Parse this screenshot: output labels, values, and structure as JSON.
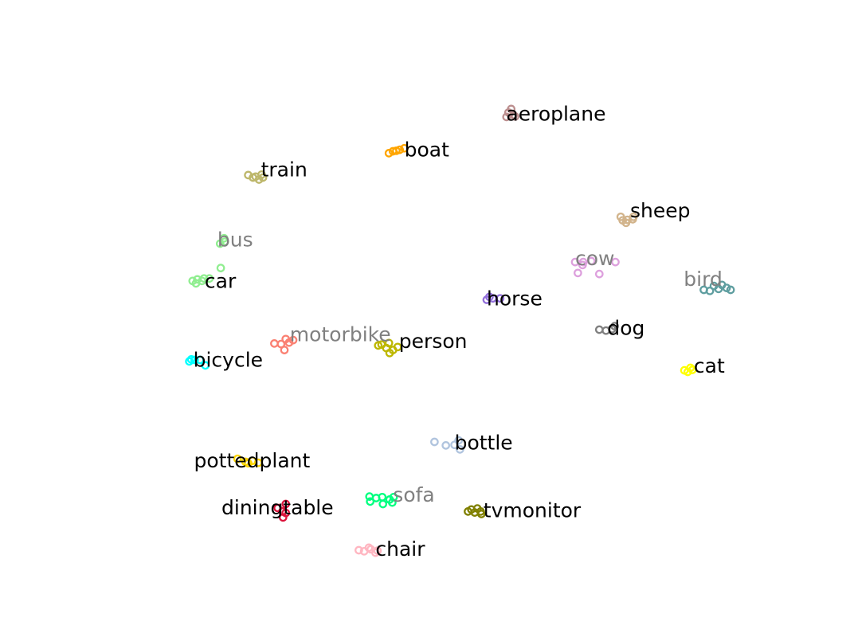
{
  "chart_data": {
    "type": "scatter",
    "title": "",
    "xlabel": "",
    "ylabel": "",
    "axes_visible": false,
    "grid": false,
    "legend": "none",
    "xlim": [
      0,
      100
    ],
    "ylim": [
      0,
      100
    ],
    "series": [
      {
        "name": "aeroplane",
        "color": "#bc8f8f",
        "label_color": "#000000",
        "points": [
          [
            59.85,
            90.5
          ],
          [
            60.6,
            90.0
          ],
          [
            60.25,
            91.2
          ],
          [
            60.85,
            89.7
          ],
          [
            59.55,
            89.6
          ]
        ],
        "label_at": [
          59.5,
          90.0
        ]
      },
      {
        "name": "boat",
        "color": "#ffa500",
        "label_color": "#000000",
        "points": [
          [
            42.0,
            82.3
          ],
          [
            43.1,
            82.8
          ],
          [
            44.3,
            83.3
          ],
          [
            42.6,
            82.7
          ],
          [
            43.6,
            83.0
          ]
        ],
        "label_at": [
          44.3,
          82.8
        ]
      },
      {
        "name": "train",
        "color": "#bdb76b",
        "label_color": "#000000",
        "points": [
          [
            21.0,
            77.9
          ],
          [
            22.1,
            77.6
          ],
          [
            23.2,
            77.4
          ],
          [
            22.6,
            77.0
          ],
          [
            21.7,
            77.4
          ],
          [
            23.0,
            78.0
          ]
        ],
        "label_at": [
          22.9,
          78.8
        ]
      },
      {
        "name": "sheep",
        "color": "#d2b48c",
        "label_color": "#000000",
        "points": [
          [
            76.6,
            69.5
          ],
          [
            77.6,
            68.9
          ],
          [
            78.4,
            69.0
          ],
          [
            76.9,
            68.8
          ],
          [
            77.4,
            68.3
          ],
          [
            78.5,
            69.5
          ]
        ],
        "label_at": [
          78.0,
          70.5
        ]
      },
      {
        "name": "bus",
        "color": "#90ee90",
        "label_color": "#808080",
        "points": [
          [
            16.8,
            64.1
          ],
          [
            17.4,
            65.2
          ],
          [
            16.9,
            59.2
          ],
          [
            17.5,
            64.5
          ]
        ],
        "label_at": [
          16.4,
          64.7
        ]
      },
      {
        "name": "cow",
        "color": "#dda0dd",
        "label_color": "#808080",
        "points": [
          [
            69.8,
            60.4
          ],
          [
            71.0,
            60.4
          ],
          [
            72.2,
            60.6
          ],
          [
            70.2,
            58.2
          ],
          [
            73.4,
            58.0
          ],
          [
            75.8,
            60.4
          ],
          [
            70.9,
            59.8
          ]
        ],
        "label_at": [
          69.8,
          60.9
        ]
      },
      {
        "name": "car",
        "color": "#90ee90",
        "label_color": "#000000",
        "points": [
          [
            12.7,
            56.6
          ],
          [
            13.4,
            56.9
          ],
          [
            14.4,
            57.1
          ],
          [
            15.2,
            57.1
          ],
          [
            13.2,
            56.1
          ],
          [
            14.1,
            56.6
          ]
        ],
        "label_at": [
          14.5,
          56.3
        ]
      },
      {
        "name": "bird",
        "color": "#5f9ea0",
        "label_color": "#808080",
        "points": [
          [
            89.0,
            54.8
          ],
          [
            90.5,
            55.6
          ],
          [
            91.7,
            55.8
          ],
          [
            92.4,
            55.2
          ],
          [
            93.0,
            54.8
          ],
          [
            89.9,
            54.6
          ],
          [
            91.2,
            55.0
          ]
        ],
        "label_at": [
          86.0,
          56.7
        ]
      },
      {
        "name": "horse",
        "color": "#9370db",
        "label_color": "#000000",
        "points": [
          [
            56.6,
            52.8
          ],
          [
            57.5,
            53.1
          ],
          [
            58.6,
            53.1
          ],
          [
            57.0,
            53.4
          ]
        ],
        "label_at": [
          56.6,
          52.8
        ]
      },
      {
        "name": "dog",
        "color": "#808080",
        "label_color": "#000000",
        "points": [
          [
            73.4,
            46.8
          ],
          [
            74.4,
            46.6
          ],
          [
            75.7,
            47.5
          ],
          [
            75.3,
            46.9
          ]
        ],
        "label_at": [
          74.6,
          46.9
        ]
      },
      {
        "name": "motorbike",
        "color": "#fa8072",
        "label_color": "#808080",
        "points": [
          [
            24.9,
            44.0
          ],
          [
            25.9,
            43.9
          ],
          [
            27.1,
            44.2
          ],
          [
            26.4,
            42.7
          ],
          [
            27.7,
            44.7
          ],
          [
            26.6,
            44.9
          ]
        ],
        "label_at": [
          27.2,
          45.6
        ]
      },
      {
        "name": "person",
        "color": "#bdb700",
        "label_color": "#000000",
        "points": [
          [
            40.4,
            43.6
          ],
          [
            41.6,
            43.1
          ],
          [
            42.6,
            42.7
          ],
          [
            43.3,
            43.3
          ],
          [
            42.1,
            42.1
          ],
          [
            40.9,
            43.8
          ],
          [
            42.0,
            44.1
          ]
        ],
        "label_at": [
          43.5,
          44.2
        ]
      },
      {
        "name": "bicycle",
        "color": "#00ffff",
        "label_color": "#000000",
        "points": [
          [
            12.2,
            40.4
          ],
          [
            13.0,
            40.7
          ],
          [
            13.8,
            40.7
          ],
          [
            14.6,
            39.6
          ],
          [
            12.5,
            40.8
          ]
        ],
        "label_at": [
          12.8,
          40.5
        ]
      },
      {
        "name": "cat",
        "color": "#ffff00",
        "label_color": "#000000",
        "points": [
          [
            86.1,
            38.6
          ],
          [
            87.0,
            39.1
          ],
          [
            86.6,
            38.3
          ],
          [
            87.3,
            38.7
          ]
        ],
        "label_at": [
          87.5,
          39.3
        ]
      },
      {
        "name": "bottle",
        "color": "#b0c4de",
        "label_color": "#000000",
        "points": [
          [
            48.8,
            24.2
          ],
          [
            50.5,
            23.5
          ],
          [
            51.8,
            23.6
          ],
          [
            52.6,
            22.7
          ],
          [
            52.4,
            24.5
          ]
        ],
        "label_at": [
          51.8,
          23.8
        ]
      },
      {
        "name": "pottedplant",
        "color": "#ffd700",
        "label_color": "#000000",
        "points": [
          [
            19.4,
            20.8
          ],
          [
            20.6,
            20.2
          ],
          [
            21.6,
            20.4
          ],
          [
            22.5,
            20.0
          ],
          [
            21.0,
            19.9
          ]
        ],
        "label_at": [
          12.9,
          20.2
        ]
      },
      {
        "name": "sofa",
        "color": "#00ff7f",
        "label_color": "#808080",
        "points": [
          [
            39.1,
            13.2
          ],
          [
            40.1,
            12.9
          ],
          [
            41.0,
            13.1
          ],
          [
            42.1,
            12.6
          ],
          [
            42.7,
            13.1
          ],
          [
            39.2,
            12.2
          ],
          [
            41.1,
            11.7
          ],
          [
            42.5,
            12.0
          ]
        ],
        "label_at": [
          42.6,
          13.3
        ]
      },
      {
        "name": "diningtable",
        "color": "#dc143c",
        "label_color": "#000000",
        "points": [
          [
            25.4,
            10.9
          ],
          [
            26.1,
            10.2
          ],
          [
            26.6,
            11.7
          ],
          [
            26.2,
            9.0
          ],
          [
            26.6,
            9.9
          ]
        ],
        "label_at": [
          17.0,
          10.7
        ]
      },
      {
        "name": "tvmonitor",
        "color": "#808000",
        "label_color": "#000000",
        "points": [
          [
            53.8,
            10.2
          ],
          [
            54.8,
            10.0
          ],
          [
            55.7,
            10.2
          ],
          [
            55.2,
            10.8
          ],
          [
            54.3,
            10.6
          ],
          [
            55.8,
            9.7
          ]
        ],
        "label_at": [
          56.1,
          10.2
        ]
      },
      {
        "name": "chair",
        "color": "#ffb6c1",
        "label_color": "#000000",
        "points": [
          [
            37.5,
            2.4
          ],
          [
            38.3,
            2.2
          ],
          [
            39.3,
            2.6
          ],
          [
            40.3,
            2.3
          ],
          [
            39.0,
            2.9
          ],
          [
            40.0,
            1.9
          ]
        ],
        "label_at": [
          40.0,
          2.4
        ]
      }
    ]
  }
}
